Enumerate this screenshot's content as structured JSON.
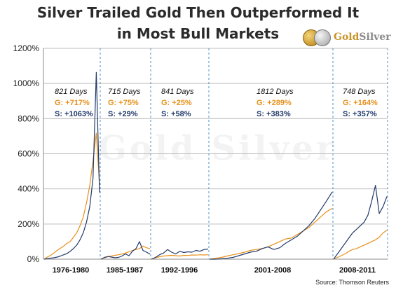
{
  "title_line1": "Silver Trailed Gold Then Outperformed It",
  "title_line2": "in Most Bull Markets",
  "logo": {
    "word1": "Gold",
    "word2": "Silver"
  },
  "watermark": "Gold Silver",
  "source": "Source: Thomson Reuters",
  "colors": {
    "gold": "#e8901a",
    "silver": "#233a6b",
    "grid": "#bdbdbd",
    "divider": "#4a90c8"
  },
  "chart_data": {
    "type": "line",
    "ylim": [
      0,
      1200
    ],
    "yticks": [
      0,
      200,
      400,
      600,
      800,
      1000,
      1200
    ],
    "ytick_labels": [
      "0%",
      "200%",
      "400%",
      "600%",
      "800%",
      "1000%",
      "1200%"
    ],
    "ylabel": "",
    "xlabel": "",
    "grid": true,
    "legend": "none",
    "periods": [
      {
        "label": "1976-1980",
        "days": "821 Days",
        "gold": "G: +717%",
        "silver": "S: +1063%",
        "series": [
          {
            "name": "Gold",
            "values": [
              0,
              12,
              22,
              35,
              50,
              62,
              75,
              90,
              100,
              125,
              150,
              190,
              240,
              320,
              420,
              560,
              717,
              420
            ]
          },
          {
            "name": "Silver",
            "values": [
              0,
              3,
              6,
              8,
              12,
              18,
              25,
              32,
              45,
              60,
              80,
              110,
              150,
              210,
              300,
              460,
              1063,
              380
            ]
          }
        ]
      },
      {
        "label": "1985-1987",
        "days": "715 Days",
        "gold": "G: +75%",
        "silver": "S: +29%",
        "series": [
          {
            "name": "Gold",
            "values": [
              0,
              8,
              14,
              18,
              22,
              25,
              30,
              35,
              42,
              50,
              55,
              60,
              75,
              65,
              60
            ]
          },
          {
            "name": "Silver",
            "values": [
              0,
              10,
              15,
              12,
              8,
              10,
              18,
              30,
              20,
              45,
              60,
              100,
              50,
              40,
              29
            ]
          }
        ]
      },
      {
        "label": "1992-1996",
        "days": "841 Days",
        "gold": "G: +25%",
        "silver": "S: +58%",
        "series": [
          {
            "name": "Gold",
            "values": [
              0,
              8,
              14,
              18,
              20,
              22,
              20,
              18,
              22,
              21,
              24,
              23,
              25,
              24,
              25
            ]
          },
          {
            "name": "Silver",
            "values": [
              0,
              10,
              25,
              35,
              55,
              40,
              30,
              45,
              38,
              42,
              40,
              50,
              45,
              55,
              58
            ]
          }
        ]
      },
      {
        "label": "2001-2008",
        "days": "1812 Days",
        "gold": "G: +289%",
        "silver": "S: +383%",
        "series": [
          {
            "name": "Gold",
            "values": [
              0,
              5,
              10,
              18,
              25,
              32,
              40,
              50,
              55,
              60,
              70,
              85,
              100,
              115,
              120,
              140,
              160,
              180,
              210,
              240,
              270,
              289
            ]
          },
          {
            "name": "Silver",
            "values": [
              0,
              0,
              2,
              5,
              10,
              20,
              30,
              40,
              45,
              60,
              70,
              55,
              65,
              90,
              110,
              130,
              160,
              190,
              230,
              280,
              330,
              383
            ]
          }
        ]
      },
      {
        "label": "2008-2011",
        "days": "748 Days",
        "gold": "G: +164%",
        "silver": "S: +357%",
        "series": [
          {
            "name": "Gold",
            "values": [
              0,
              10,
              20,
              30,
              45,
              55,
              60,
              70,
              80,
              90,
              100,
              110,
              125,
              150,
              164
            ]
          },
          {
            "name": "Silver",
            "values": [
              0,
              30,
              60,
              90,
              120,
              150,
              170,
              190,
              210,
              250,
              330,
              420,
              260,
              300,
              357
            ]
          }
        ]
      }
    ]
  }
}
